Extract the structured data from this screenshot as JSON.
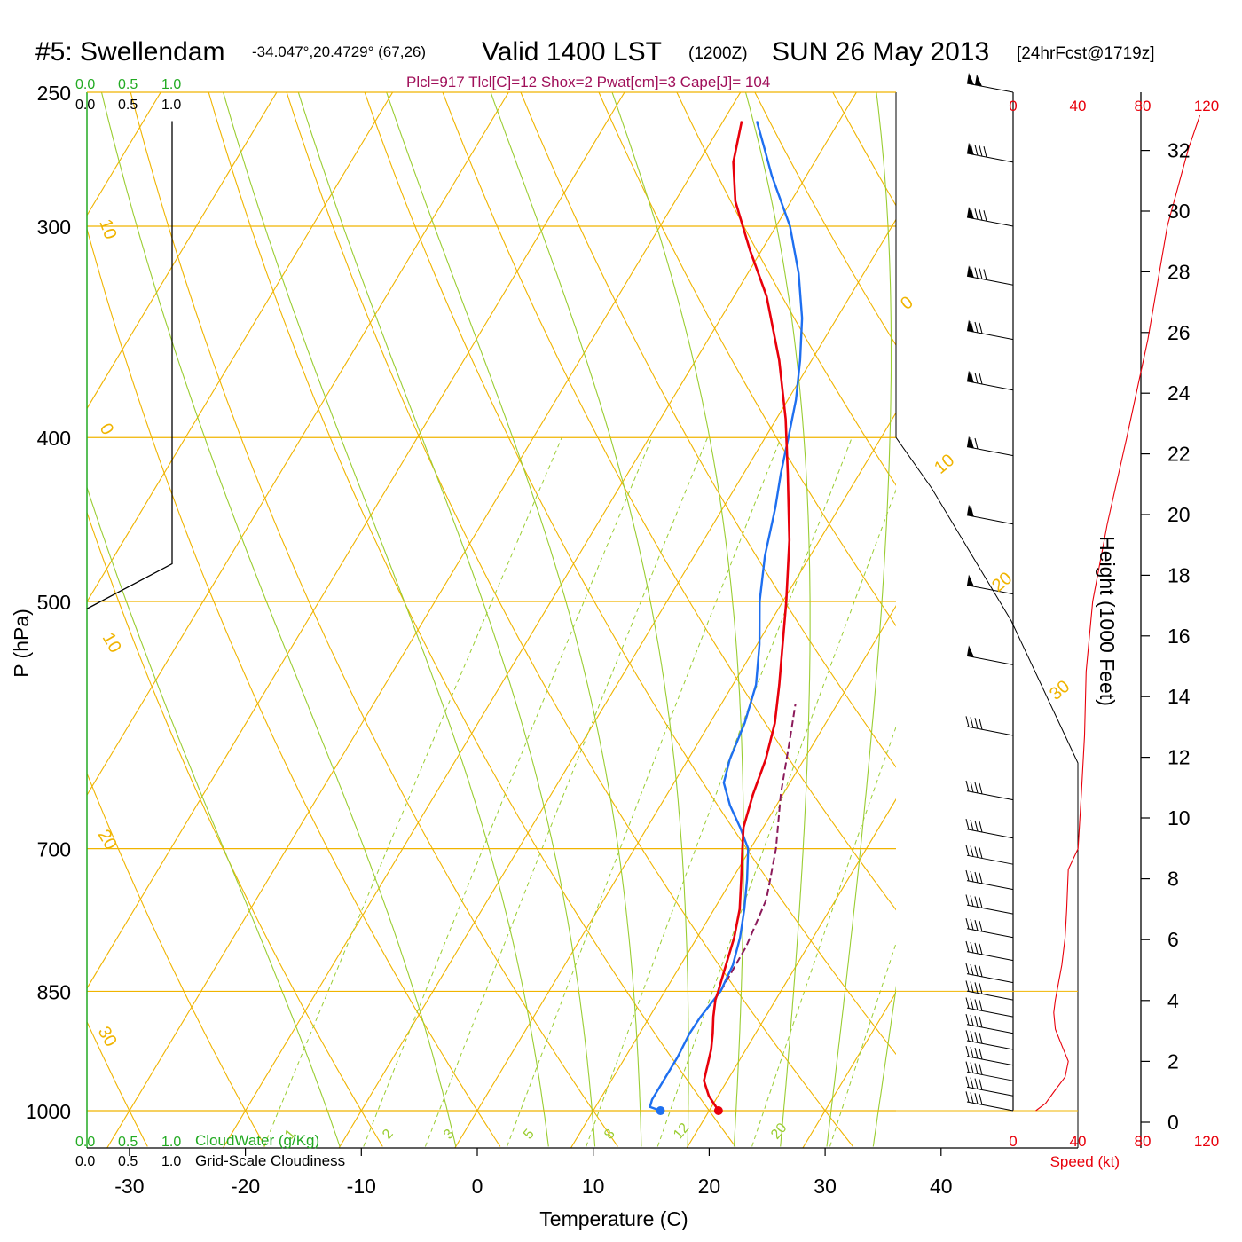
{
  "title": {
    "station": "#5: Swellendam",
    "coords": "-34.047°,20.4729° (67,26)",
    "valid": "Valid 1400 LST",
    "zulu": "(1200Z)",
    "date": "SUN 26 May 2013",
    "forecast": "[24hrFcst@1719z]"
  },
  "indices": "Plcl=917 Tlcl[C]=12 Shox=2 Pwat[cm]=3 Cape[J]= 104",
  "colors": {
    "temperature": "#e8000b",
    "dewpoint": "#1e6ff0",
    "parcel": "#8b1a5a",
    "isobar": "#f0b400",
    "moist_adiabat": "#9acd32",
    "mixing_ratio": "#9acd32",
    "cloud_water": "#22aa22",
    "speed": "#e8000b",
    "indices_text": "#a0105a"
  },
  "cloud": {
    "cw_label": "CloudWater (g/Kg)",
    "gsc_label": "Grid-Scale Cloudiness",
    "ticks": [
      "0.0",
      "0.5",
      "1.0"
    ]
  },
  "speed_panel": {
    "label": "Speed (kt)",
    "ticks": [
      "0",
      "40",
      "80",
      "120"
    ]
  },
  "chart_data": {
    "type": "line",
    "chart_kind": "skew-T log-P sounding",
    "xlabel": "Temperature (C)",
    "ylabel": "P (hPa)",
    "height_label": "Height (1000 Feet)",
    "x_ticks": [
      -30,
      -20,
      -10,
      0,
      10,
      20,
      30,
      40
    ],
    "p_ticks": [
      250,
      300,
      400,
      500,
      700,
      850,
      1000
    ],
    "height_ticks": [
      0,
      2,
      4,
      6,
      8,
      10,
      12,
      14,
      16,
      18,
      20,
      22,
      24,
      26,
      28,
      30,
      32
    ],
    "xlim": [
      -30,
      40
    ],
    "plim": [
      1050,
      250
    ],
    "dry_adiabat_labels": [
      "10",
      "0",
      "10",
      "20",
      "30"
    ],
    "dry_adiabat_right_labels": [
      "0",
      "10",
      "20",
      "30"
    ],
    "mixing_ratio_labels": [
      "1",
      "2",
      "3",
      "5",
      "8",
      "12",
      "20"
    ],
    "surface_point": {
      "p": 1000,
      "temperature": 20.8,
      "dewpoint": 15.8
    },
    "series": [
      {
        "name": "Temperature",
        "points": [
          [
            1000,
            20.8
          ],
          [
            980,
            19.2
          ],
          [
            960,
            18.0
          ],
          [
            940,
            17.5
          ],
          [
            920,
            17.0
          ],
          [
            900,
            16.3
          ],
          [
            880,
            15.5
          ],
          [
            860,
            14.8
          ],
          [
            850,
            14.6
          ],
          [
            820,
            13.9
          ],
          [
            790,
            13.2
          ],
          [
            760,
            12.2
          ],
          [
            730,
            10.8
          ],
          [
            700,
            9.3
          ],
          [
            680,
            8.3
          ],
          [
            650,
            7.4
          ],
          [
            620,
            6.7
          ],
          [
            590,
            5.6
          ],
          [
            560,
            4.0
          ],
          [
            530,
            2.2
          ],
          [
            500,
            0.3
          ],
          [
            460,
            -2.6
          ],
          [
            420,
            -6.2
          ],
          [
            390,
            -9.2
          ],
          [
            360,
            -12.8
          ],
          [
            330,
            -17.2
          ],
          [
            310,
            -21.0
          ],
          [
            290,
            -24.8
          ],
          [
            275,
            -27.0
          ],
          [
            260,
            -28.4
          ]
        ]
      },
      {
        "name": "Dewpoint",
        "points": [
          [
            1000,
            15.8
          ],
          [
            995,
            14.7
          ],
          [
            985,
            14.5
          ],
          [
            960,
            14.5
          ],
          [
            930,
            14.5
          ],
          [
            900,
            14.3
          ],
          [
            880,
            14.4
          ],
          [
            850,
            14.8
          ],
          [
            820,
            14.5
          ],
          [
            790,
            13.7
          ],
          [
            760,
            12.6
          ],
          [
            730,
            11.3
          ],
          [
            700,
            9.8
          ],
          [
            680,
            8.0
          ],
          [
            660,
            6.0
          ],
          [
            640,
            4.3
          ],
          [
            620,
            3.6
          ],
          [
            590,
            3.0
          ],
          [
            560,
            2.0
          ],
          [
            530,
            0.2
          ],
          [
            500,
            -2.0
          ],
          [
            470,
            -3.9
          ],
          [
            440,
            -5.5
          ],
          [
            420,
            -6.8
          ],
          [
            400,
            -8.0
          ],
          [
            380,
            -9.3
          ],
          [
            360,
            -11.0
          ],
          [
            340,
            -13.0
          ],
          [
            320,
            -15.6
          ],
          [
            300,
            -18.8
          ],
          [
            280,
            -23.0
          ],
          [
            270,
            -25.0
          ],
          [
            260,
            -27.1
          ]
        ]
      },
      {
        "name": "Parcel",
        "points": [
          [
            850,
            14.8
          ],
          [
            800,
            14.7
          ],
          [
            750,
            14.0
          ],
          [
            700,
            12.2
          ],
          [
            650,
            9.8
          ],
          [
            600,
            7.6
          ],
          [
            575,
            6.4
          ]
        ]
      },
      {
        "name": "Cloud Water",
        "points": [
          [
            1000,
            0.0
          ],
          [
            250,
            0.0
          ]
        ]
      },
      {
        "name": "Grid-Scale Cloudiness",
        "points": [
          [
            260,
            1.0
          ],
          [
            475,
            1.0
          ],
          [
            505,
            0.0
          ]
        ]
      },
      {
        "name": "Wind Speed (kt)",
        "points": [
          [
            1000,
            14
          ],
          [
            990,
            20
          ],
          [
            975,
            25
          ],
          [
            955,
            32
          ],
          [
            935,
            34
          ],
          [
            915,
            30
          ],
          [
            895,
            26
          ],
          [
            875,
            25
          ],
          [
            860,
            26
          ],
          [
            840,
            28
          ],
          [
            820,
            30
          ],
          [
            790,
            32
          ],
          [
            760,
            33
          ],
          [
            720,
            34
          ],
          [
            700,
            40
          ],
          [
            650,
            42
          ],
          [
            600,
            44
          ],
          [
            550,
            45
          ],
          [
            500,
            49
          ],
          [
            450,
            58
          ],
          [
            400,
            70
          ],
          [
            350,
            83
          ],
          [
            300,
            95
          ],
          [
            270,
            108
          ],
          [
            258,
            115
          ]
        ]
      }
    ],
    "wind_barbs": [
      {
        "p": 250,
        "flags": 2,
        "barbs": 0
      },
      {
        "p": 275,
        "flags": 1,
        "barbs": 4
      },
      {
        "p": 300,
        "flags": 1,
        "barbs": 4
      },
      {
        "p": 325,
        "flags": 1,
        "barbs": 4
      },
      {
        "p": 350,
        "flags": 1,
        "barbs": 3
      },
      {
        "p": 375,
        "flags": 1,
        "barbs": 3
      },
      {
        "p": 410,
        "flags": 1,
        "barbs": 2
      },
      {
        "p": 450,
        "flags": 1,
        "barbs": 1
      },
      {
        "p": 495,
        "flags": 1,
        "barbs": 0
      },
      {
        "p": 545,
        "flags": 1,
        "barbs": 0
      },
      {
        "p": 600,
        "flags": 0,
        "barbs": 4
      },
      {
        "p": 655,
        "flags": 0,
        "barbs": 4
      },
      {
        "p": 690,
        "flags": 0,
        "barbs": 4
      },
      {
        "p": 715,
        "flags": 0,
        "barbs": 4
      },
      {
        "p": 740,
        "flags": 0,
        "barbs": 4
      },
      {
        "p": 765,
        "flags": 0,
        "barbs": 4
      },
      {
        "p": 790,
        "flags": 0,
        "barbs": 4
      },
      {
        "p": 815,
        "flags": 0,
        "barbs": 4
      },
      {
        "p": 840,
        "flags": 0,
        "barbs": 4
      },
      {
        "p": 860,
        "flags": 0,
        "barbs": 4
      },
      {
        "p": 880,
        "flags": 0,
        "barbs": 4
      },
      {
        "p": 900,
        "flags": 0,
        "barbs": 4
      },
      {
        "p": 920,
        "flags": 0,
        "barbs": 4
      },
      {
        "p": 940,
        "flags": 0,
        "barbs": 4
      },
      {
        "p": 960,
        "flags": 0,
        "barbs": 4
      },
      {
        "p": 980,
        "flags": 0,
        "barbs": 4
      },
      {
        "p": 1000,
        "flags": 0,
        "barbs": 4
      }
    ]
  }
}
